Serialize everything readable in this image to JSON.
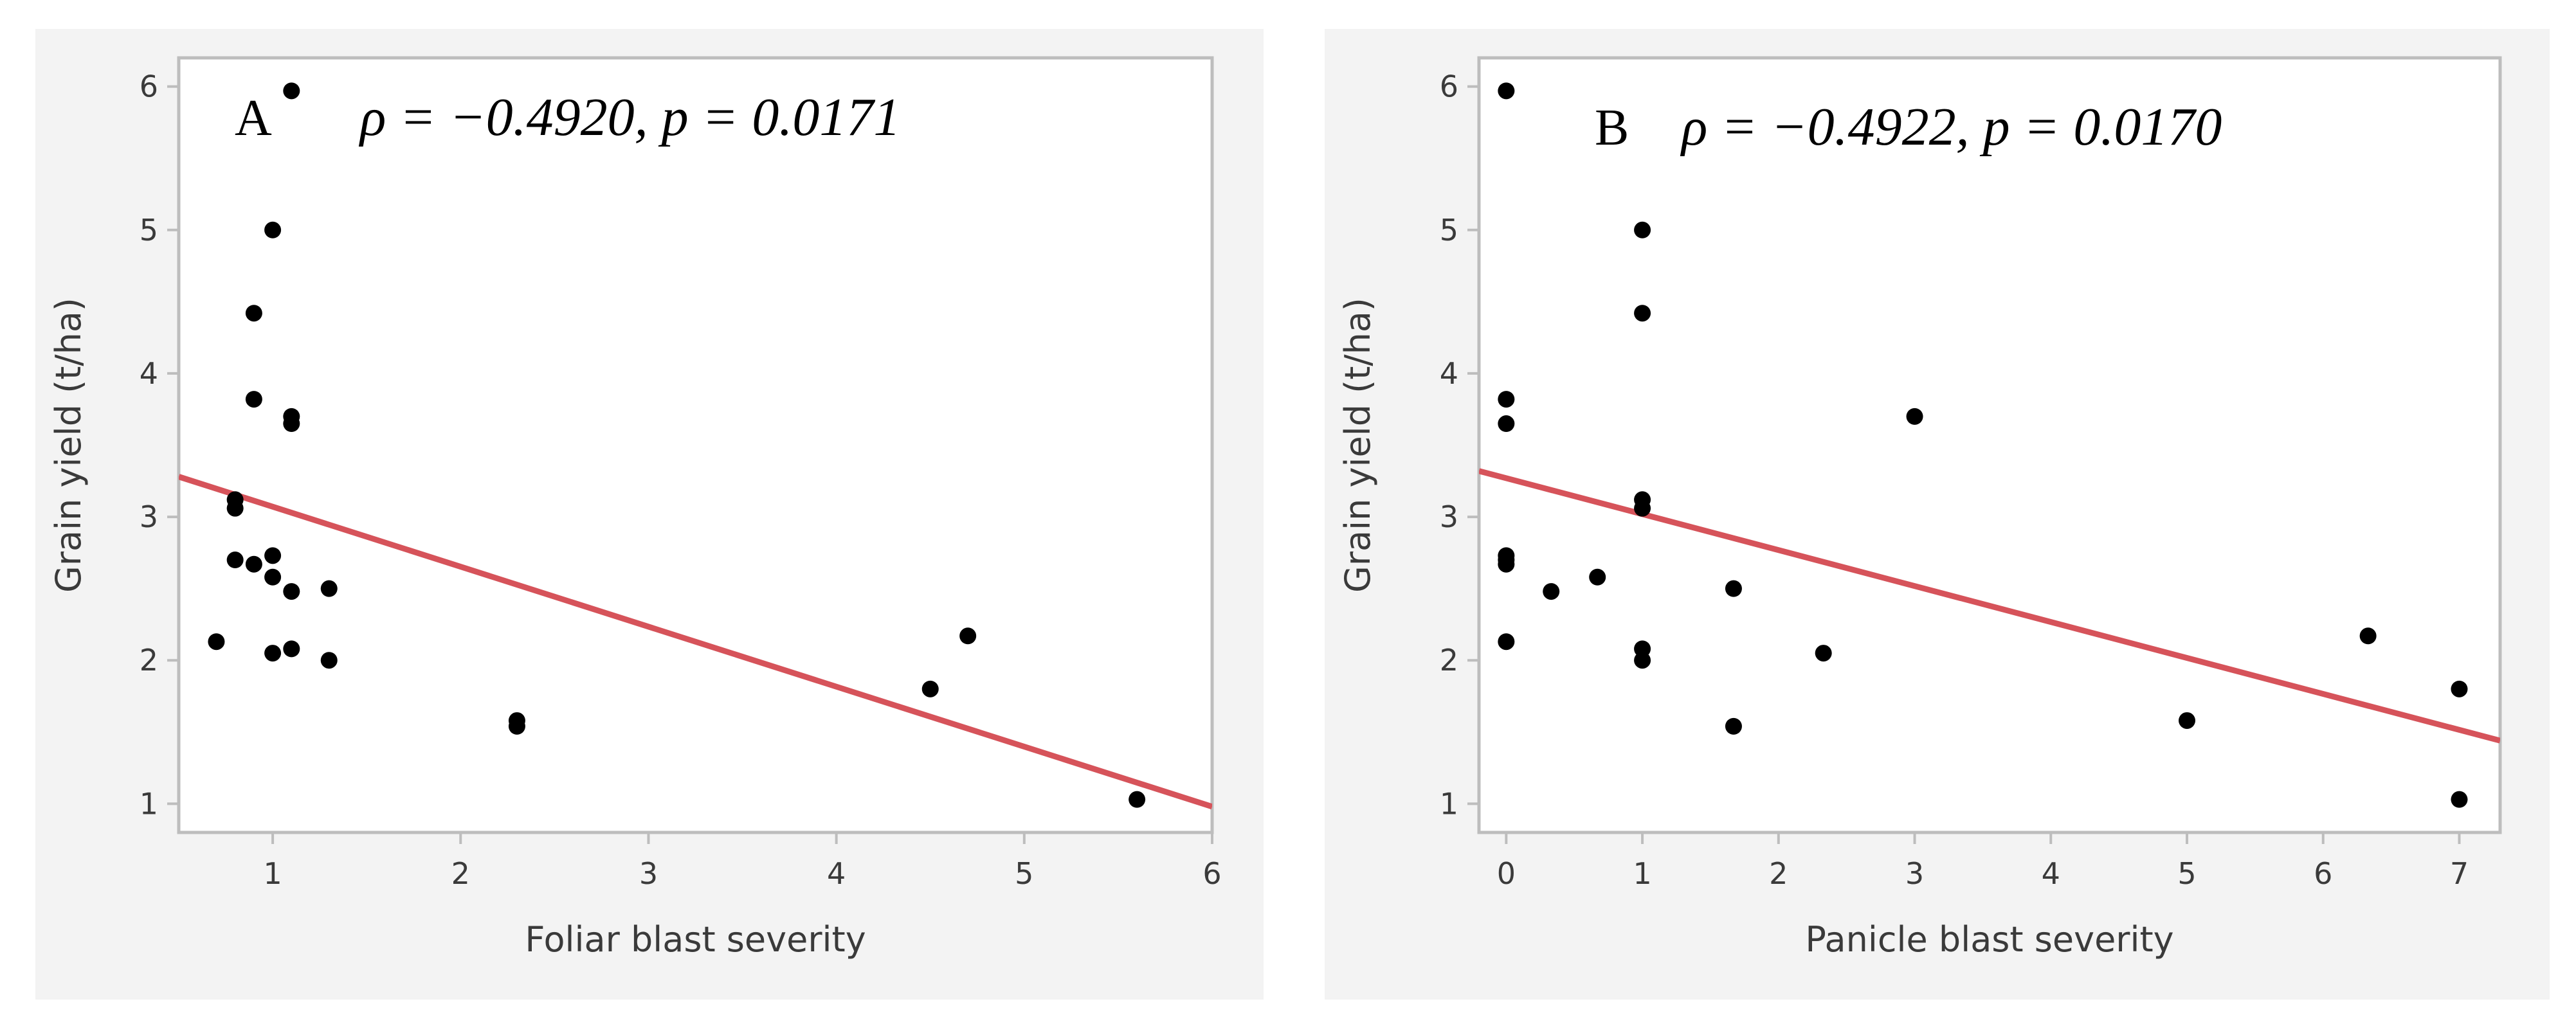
{
  "colors": {
    "panel_background": "#f3f3f3",
    "plot_background": "#ffffff",
    "frame": "#bdbdbd",
    "point": "#000000",
    "fit_line": "#d6535a"
  },
  "chart_data": [
    {
      "type": "scatter",
      "panel_label": "A",
      "annotation": "ρ = −0.4920, p = 0.0171",
      "xlabel": "Foliar blast severity",
      "ylabel": "Grain yield (t/ha)",
      "xlim": [
        0.5,
        6
      ],
      "ylim": [
        0.8,
        6.2
      ],
      "xticks": [
        1,
        2,
        3,
        4,
        5,
        6
      ],
      "yticks": [
        1,
        2,
        3,
        4,
        5,
        6
      ],
      "points": [
        {
          "x": 0.7,
          "y": 2.13
        },
        {
          "x": 0.8,
          "y": 3.12
        },
        {
          "x": 0.8,
          "y": 3.06
        },
        {
          "x": 0.8,
          "y": 2.7
        },
        {
          "x": 0.9,
          "y": 4.42
        },
        {
          "x": 0.9,
          "y": 3.82
        },
        {
          "x": 0.9,
          "y": 2.67
        },
        {
          "x": 1.0,
          "y": 5.0
        },
        {
          "x": 1.0,
          "y": 2.73
        },
        {
          "x": 1.0,
          "y": 2.58
        },
        {
          "x": 1.0,
          "y": 2.05
        },
        {
          "x": 1.1,
          "y": 5.97
        },
        {
          "x": 1.1,
          "y": 3.7
        },
        {
          "x": 1.1,
          "y": 3.65
        },
        {
          "x": 1.1,
          "y": 2.48
        },
        {
          "x": 1.1,
          "y": 2.08
        },
        {
          "x": 1.3,
          "y": 2.5
        },
        {
          "x": 1.3,
          "y": 2.0
        },
        {
          "x": 2.3,
          "y": 1.58
        },
        {
          "x": 2.3,
          "y": 1.54
        },
        {
          "x": 4.5,
          "y": 1.8
        },
        {
          "x": 4.7,
          "y": 2.17
        },
        {
          "x": 5.6,
          "y": 1.03
        }
      ],
      "fit_line": {
        "x": [
          0.5,
          6.0
        ],
        "y": [
          3.28,
          0.98
        ]
      }
    },
    {
      "type": "scatter",
      "panel_label": "B",
      "annotation": "ρ = −0.4922, p = 0.0170",
      "xlabel": "Panicle blast severity",
      "ylabel": "Grain yield (t/ha)",
      "xlim": [
        -0.2,
        7.3
      ],
      "ylim": [
        0.8,
        6.2
      ],
      "xticks": [
        0,
        1,
        2,
        3,
        4,
        5,
        6,
        7
      ],
      "yticks": [
        1,
        2,
        3,
        4,
        5,
        6
      ],
      "points": [
        {
          "x": 0,
          "y": 5.97
        },
        {
          "x": 0,
          "y": 3.82
        },
        {
          "x": 0,
          "y": 3.65
        },
        {
          "x": 0,
          "y": 2.73
        },
        {
          "x": 0,
          "y": 2.7
        },
        {
          "x": 0,
          "y": 2.67
        },
        {
          "x": 0,
          "y": 2.13
        },
        {
          "x": 0.33,
          "y": 2.48
        },
        {
          "x": 0.67,
          "y": 2.58
        },
        {
          "x": 1,
          "y": 5.0
        },
        {
          "x": 1,
          "y": 4.42
        },
        {
          "x": 1,
          "y": 3.12
        },
        {
          "x": 1,
          "y": 3.06
        },
        {
          "x": 1,
          "y": 2.08
        },
        {
          "x": 1,
          "y": 2.0
        },
        {
          "x": 1.67,
          "y": 2.5
        },
        {
          "x": 1.67,
          "y": 1.54
        },
        {
          "x": 2.33,
          "y": 2.05
        },
        {
          "x": 3,
          "y": 3.7
        },
        {
          "x": 5,
          "y": 1.58
        },
        {
          "x": 6.33,
          "y": 2.17
        },
        {
          "x": 7,
          "y": 1.8
        },
        {
          "x": 7,
          "y": 1.03
        }
      ],
      "fit_line": {
        "x": [
          -0.2,
          7.3
        ],
        "y": [
          3.32,
          1.44
        ]
      }
    }
  ]
}
